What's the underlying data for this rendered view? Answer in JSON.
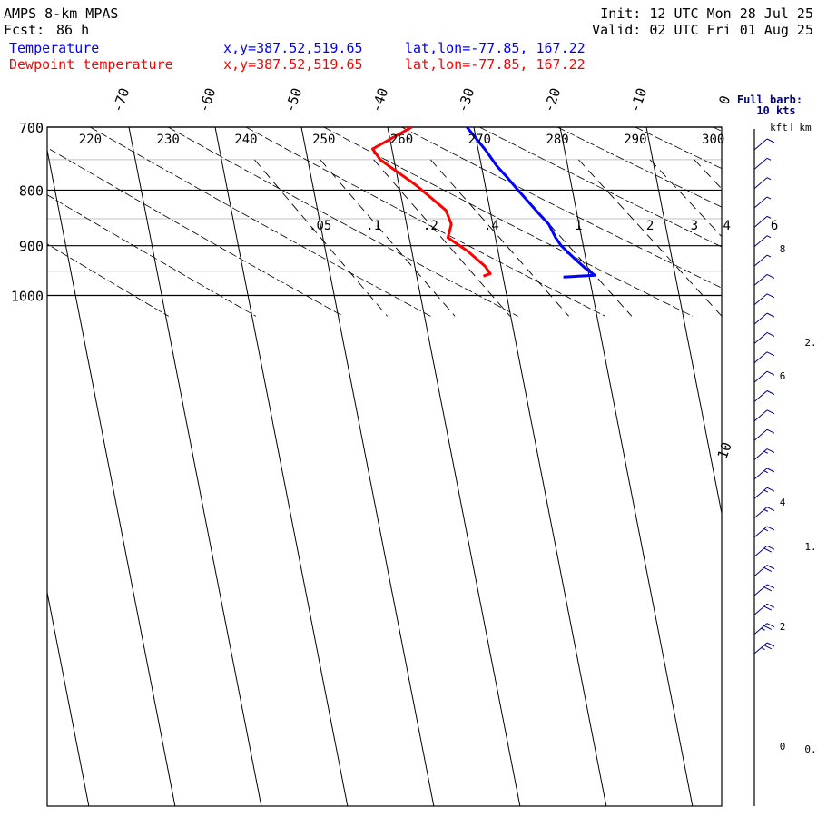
{
  "header": {
    "model": "AMPS 8-km MPAS",
    "fcst_label": "Fcst:",
    "fcst_value": "86 h",
    "init": "Init: 12 UTC Mon 28 Jul 25",
    "valid": "Valid: 02 UTC Fri 01 Aug 25",
    "temp_label": "Temperature",
    "temp_xy": "x,y=387.52,519.65",
    "temp_latlon": "lat,lon=-77.85, 167.22",
    "dew_label": "Dewpoint temperature",
    "dew_xy": "x,y=387.52,519.65",
    "dew_latlon": "lat,lon=-77.85, 167.22"
  },
  "wind_panel": {
    "title_line1": "Full barb:",
    "title_line2": "10 kts",
    "unit_kft": "kft",
    "unit_km": "km",
    "kft_ticks": [
      "8",
      "6",
      "4",
      "2",
      "0"
    ],
    "km_ticks": [
      "2.",
      "1.",
      "0."
    ],
    "barb_speed_kts": [
      10,
      5,
      5,
      5,
      5,
      5,
      5,
      10,
      10,
      10,
      10,
      10,
      10,
      10,
      10,
      10,
      15,
      15,
      15,
      15,
      15,
      20,
      20,
      20,
      20,
      25,
      25
    ]
  },
  "chart_data": {
    "type": "skew-t",
    "colors": {
      "temperature": "#0000ff",
      "dewpoint": "#ff0000",
      "axes": "#000000",
      "grid_minor": "#c0c0c0"
    },
    "pressure_axis": {
      "scale": "log",
      "range": [
        700,
        1045
      ],
      "ticks": [
        700,
        800,
        900,
        1000
      ],
      "tick_labels": [
        "700",
        "800",
        "900",
        "1000"
      ],
      "minor_gridlines": [
        750,
        850,
        950
      ]
    },
    "isotherm_labels_c": [
      "-70",
      "-60",
      "-50",
      "-40",
      "-30",
      "-20",
      "-10",
      "0",
      "10"
    ],
    "dry_adiabat_labels_k": [
      "220",
      "230",
      "240",
      "250",
      "260",
      "270",
      "280",
      "290",
      "300"
    ],
    "mixing_ratio_labels": [
      ".05",
      ".1",
      ".2",
      ".4",
      "1",
      "2",
      "3",
      "4",
      "6"
    ],
    "series": [
      {
        "name": "Temperature",
        "color": "#0000ff",
        "points": [
          {
            "p": 962,
            "t": -31.8
          },
          {
            "p": 958,
            "t": -28.0
          },
          {
            "p": 945,
            "t": -28.5
          },
          {
            "p": 925,
            "t": -29.0
          },
          {
            "p": 900,
            "t": -29.5
          },
          {
            "p": 885,
            "t": -29.5
          },
          {
            "p": 860,
            "t": -29.2
          },
          {
            "p": 840,
            "t": -29.5
          },
          {
            "p": 800,
            "t": -30.0
          },
          {
            "p": 780,
            "t": -30.2
          },
          {
            "p": 760,
            "t": -30.5
          },
          {
            "p": 735,
            "t": -30.5
          },
          {
            "p": 700,
            "t": -30.8
          }
        ]
      },
      {
        "name": "Dewpoint temperature",
        "color": "#ff0000",
        "points": [
          {
            "p": 960,
            "t": -41.0
          },
          {
            "p": 955,
            "t": -40.0
          },
          {
            "p": 940,
            "t": -40.0
          },
          {
            "p": 910,
            "t": -40.8
          },
          {
            "p": 885,
            "t": -42.0
          },
          {
            "p": 860,
            "t": -40.5
          },
          {
            "p": 835,
            "t": -40.0
          },
          {
            "p": 810,
            "t": -40.8
          },
          {
            "p": 790,
            "t": -41.5
          },
          {
            "p": 760,
            "t": -43.0
          },
          {
            "p": 750,
            "t": -43.5
          },
          {
            "p": 733,
            "t": -43.5
          },
          {
            "p": 700,
            "t": -37.2
          }
        ]
      }
    ]
  }
}
